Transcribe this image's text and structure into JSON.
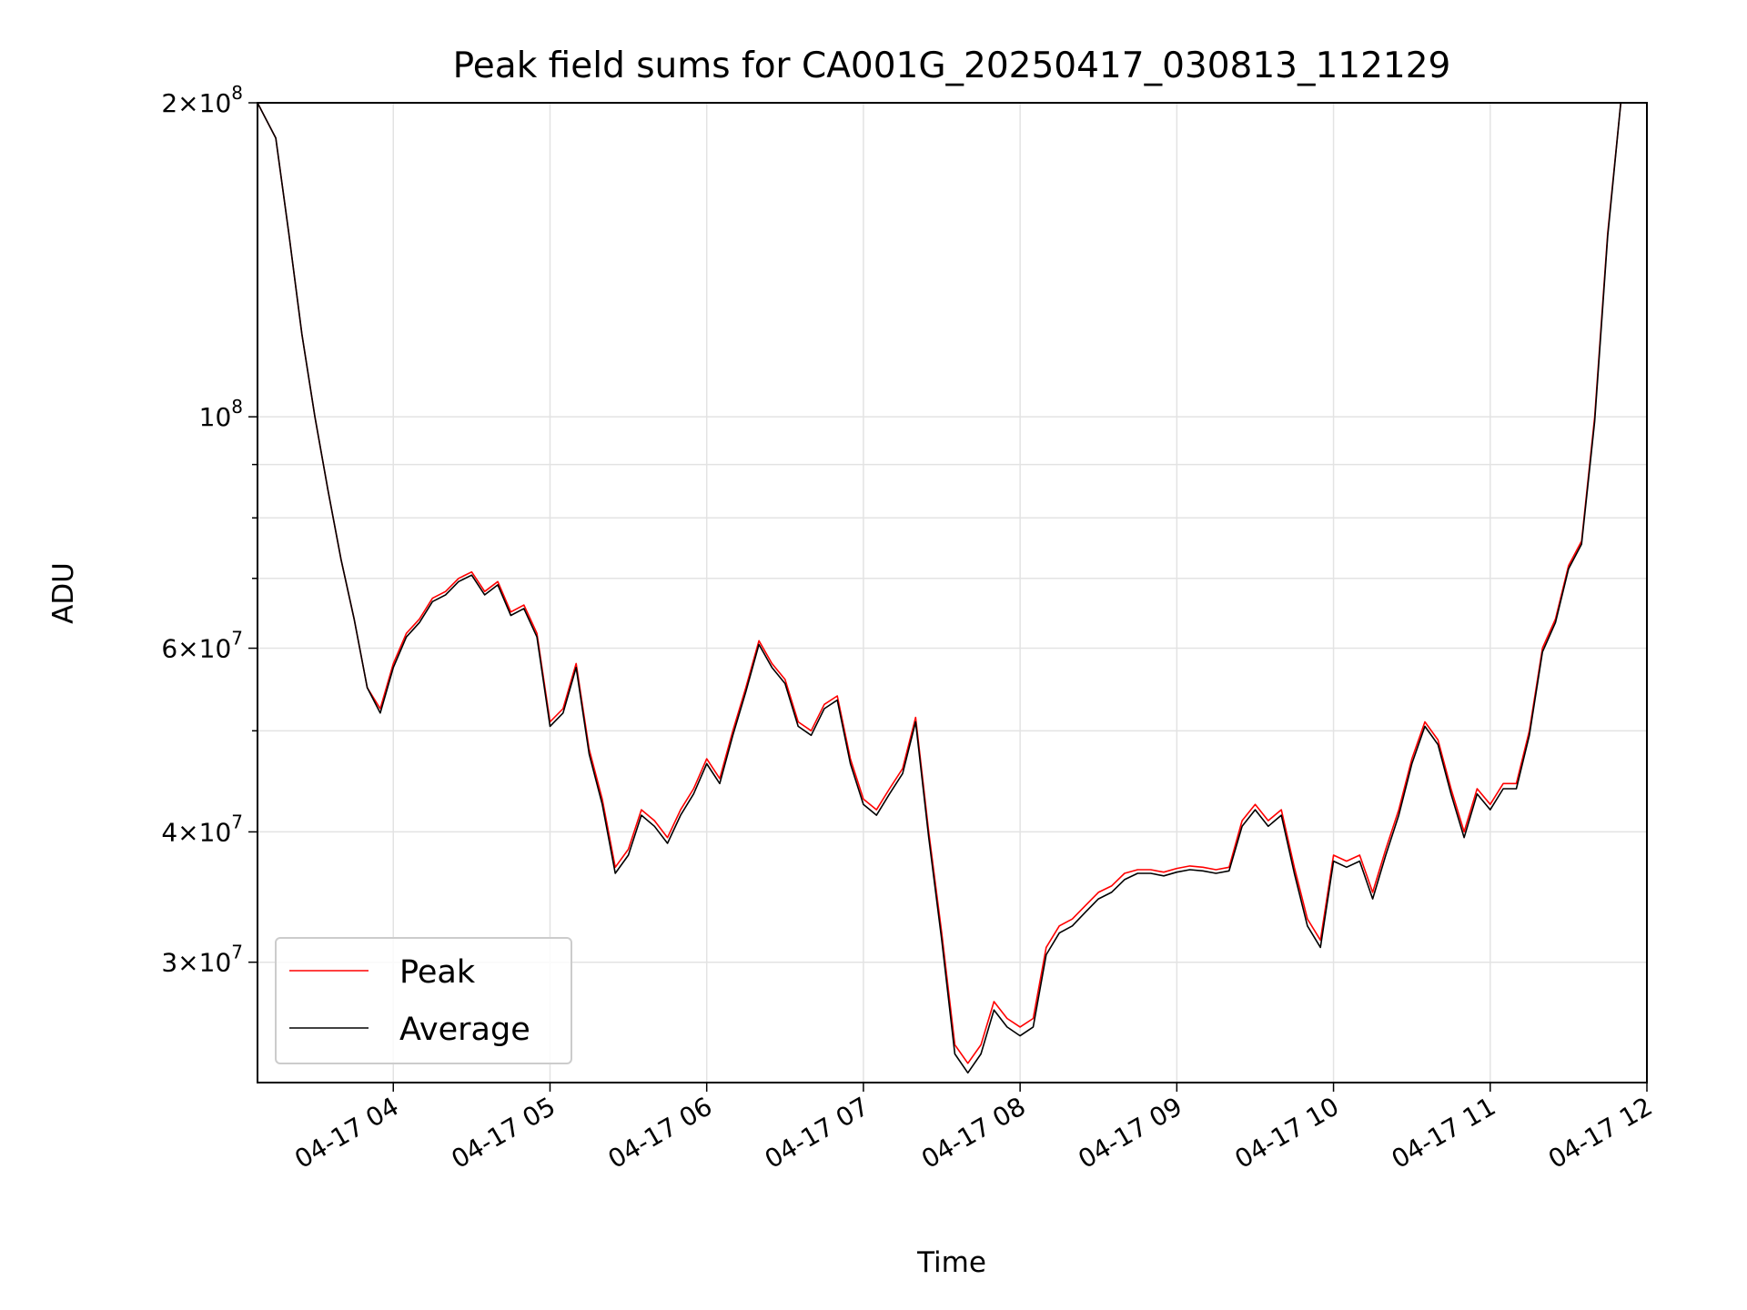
{
  "chart_data": {
    "type": "line",
    "title": "Peak field sums for CA001G_20250417_030813_112129",
    "xlabel": "Time",
    "ylabel": "ADU",
    "y_scale": "log",
    "ylim": [
      23000000,
      200000000
    ],
    "xlim": [
      "04-17 03:08",
      "04-17 12:00"
    ],
    "grid": true,
    "legend_position": "lower-left",
    "x_ticks": [
      "04-17 04",
      "04-17 05",
      "04-17 06",
      "04-17 07",
      "04-17 08",
      "04-17 09",
      "04-17 10",
      "04-17 11",
      "04-17 12"
    ],
    "y_ticks": [
      {
        "value": 200000000,
        "mantissa": "2",
        "exp": "8"
      },
      {
        "value": 100000000,
        "mantissa": "",
        "exp": "8"
      },
      {
        "value": 60000000,
        "mantissa": "6",
        "exp": "7"
      },
      {
        "value": 40000000,
        "mantissa": "4",
        "exp": "7"
      },
      {
        "value": 30000000,
        "mantissa": "3",
        "exp": "7"
      }
    ],
    "y_minor_ticks": [
      90000000,
      80000000,
      70000000,
      50000000
    ],
    "x": [
      "04-17 03:08",
      "04-17 03:15",
      "04-17 03:20",
      "04-17 03:25",
      "04-17 03:30",
      "04-17 03:35",
      "04-17 03:40",
      "04-17 03:45",
      "04-17 03:50",
      "04-17 03:55",
      "04-17 04:00",
      "04-17 04:05",
      "04-17 04:10",
      "04-17 04:15",
      "04-17 04:20",
      "04-17 04:25",
      "04-17 04:30",
      "04-17 04:35",
      "04-17 04:40",
      "04-17 04:45",
      "04-17 04:50",
      "04-17 04:55",
      "04-17 05:00",
      "04-17 05:05",
      "04-17 05:10",
      "04-17 05:15",
      "04-17 05:20",
      "04-17 05:25",
      "04-17 05:30",
      "04-17 05:35",
      "04-17 05:40",
      "04-17 05:45",
      "04-17 05:50",
      "04-17 05:55",
      "04-17 06:00",
      "04-17 06:05",
      "04-17 06:10",
      "04-17 06:15",
      "04-17 06:20",
      "04-17 06:25",
      "04-17 06:30",
      "04-17 06:35",
      "04-17 06:40",
      "04-17 06:45",
      "04-17 06:50",
      "04-17 06:55",
      "04-17 07:00",
      "04-17 07:05",
      "04-17 07:10",
      "04-17 07:15",
      "04-17 07:20",
      "04-17 07:25",
      "04-17 07:30",
      "04-17 07:35",
      "04-17 07:40",
      "04-17 07:45",
      "04-17 07:50",
      "04-17 07:55",
      "04-17 08:00",
      "04-17 08:05",
      "04-17 08:10",
      "04-17 08:15",
      "04-17 08:20",
      "04-17 08:25",
      "04-17 08:30",
      "04-17 08:35",
      "04-17 08:40",
      "04-17 08:45",
      "04-17 08:50",
      "04-17 08:55",
      "04-17 09:00",
      "04-17 09:05",
      "04-17 09:10",
      "04-17 09:15",
      "04-17 09:20",
      "04-17 09:25",
      "04-17 09:30",
      "04-17 09:35",
      "04-17 09:40",
      "04-17 09:45",
      "04-17 09:50",
      "04-17 09:55",
      "04-17 10:00",
      "04-17 10:05",
      "04-17 10:10",
      "04-17 10:15",
      "04-17 10:20",
      "04-17 10:25",
      "04-17 10:30",
      "04-17 10:35",
      "04-17 10:40",
      "04-17 10:45",
      "04-17 10:50",
      "04-17 10:55",
      "04-17 11:00",
      "04-17 11:05",
      "04-17 11:10",
      "04-17 11:15",
      "04-17 11:20",
      "04-17 11:25",
      "04-17 11:30",
      "04-17 11:35",
      "04-17 11:40",
      "04-17 11:45",
      "04-17 11:50"
    ],
    "series": [
      {
        "name": "Peak",
        "color": "#ff0000",
        "values": [
          200000000,
          185000000,
          150000000,
          120000000,
          100000000,
          85000000,
          73000000,
          64000000,
          55000000,
          52500000,
          58000000,
          62000000,
          64000000,
          67000000,
          68000000,
          70000000,
          71000000,
          68000000,
          69500000,
          65000000,
          66000000,
          62000000,
          51000000,
          52500000,
          58000000,
          48000000,
          43000000,
          37000000,
          38500000,
          42000000,
          41000000,
          39500000,
          42000000,
          44000000,
          47000000,
          45000000,
          50000000,
          55000000,
          61000000,
          58000000,
          56000000,
          51000000,
          50000000,
          53000000,
          54000000,
          47000000,
          43000000,
          42000000,
          44000000,
          46000000,
          51500000,
          40000000,
          32000000,
          25000000,
          24000000,
          25000000,
          27500000,
          26500000,
          26000000,
          26500000,
          31000000,
          32500000,
          33000000,
          34000000,
          35000000,
          35500000,
          36500000,
          36800000,
          36800000,
          36600000,
          36900000,
          37100000,
          37000000,
          36800000,
          37000000,
          41000000,
          42500000,
          41000000,
          42000000,
          37000000,
          33000000,
          31500000,
          38000000,
          37500000,
          38000000,
          35000000,
          38500000,
          42000000,
          47000000,
          51000000,
          49000000,
          44000000,
          40000000,
          44000000,
          42500000,
          44500000,
          44500000,
          50000000,
          60000000,
          64000000,
          72000000,
          76000000,
          100000000,
          150000000,
          200000000
        ]
      },
      {
        "name": "Average",
        "color": "#000000",
        "values": [
          200000000,
          185000000,
          150000000,
          120000000,
          100000000,
          85000000,
          73000000,
          64000000,
          55000000,
          52000000,
          57500000,
          61500000,
          63500000,
          66500000,
          67500000,
          69500000,
          70500000,
          67500000,
          69000000,
          64500000,
          65500000,
          61500000,
          50500000,
          52000000,
          57500000,
          47500000,
          42500000,
          36500000,
          38000000,
          41500000,
          40500000,
          39000000,
          41500000,
          43500000,
          46500000,
          44500000,
          49500000,
          54500000,
          60500000,
          57500000,
          55500000,
          50500000,
          49500000,
          52500000,
          53500000,
          46500000,
          42500000,
          41500000,
          43500000,
          45500000,
          51000000,
          39500000,
          31500000,
          24500000,
          23500000,
          24500000,
          27000000,
          26000000,
          25500000,
          26000000,
          30500000,
          32000000,
          32500000,
          33500000,
          34500000,
          35000000,
          36000000,
          36500000,
          36500000,
          36300000,
          36600000,
          36800000,
          36700000,
          36500000,
          36700000,
          40500000,
          42000000,
          40500000,
          41500000,
          36500000,
          32500000,
          31000000,
          37500000,
          37000000,
          37500000,
          34500000,
          38000000,
          41500000,
          46500000,
          50500000,
          48500000,
          43500000,
          39500000,
          43500000,
          42000000,
          44000000,
          44000000,
          49500000,
          59500000,
          63500000,
          71500000,
          75500000,
          99000000,
          149000000,
          200000000
        ]
      }
    ]
  }
}
